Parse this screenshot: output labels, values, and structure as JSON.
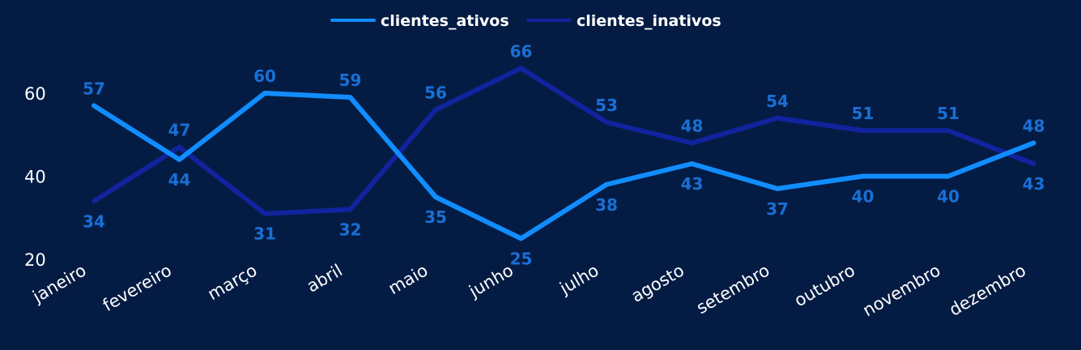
{
  "chart_data": {
    "type": "line",
    "categories": [
      "janeiro",
      "fevereiro",
      "março",
      "abril",
      "maio",
      "junho",
      "julho",
      "agosto",
      "setembro",
      "outubro",
      "novembro",
      "dezembro"
    ],
    "series": [
      {
        "name": "clientes_ativos",
        "color": "#118dff",
        "values": [
          57,
          44,
          60,
          59,
          35,
          25,
          38,
          43,
          37,
          40,
          40,
          48
        ]
      },
      {
        "name": "clientes_inativos",
        "color": "#12239e",
        "values": [
          34,
          47,
          31,
          32,
          56,
          66,
          53,
          48,
          54,
          51,
          51,
          43
        ]
      }
    ],
    "y_ticks": [
      20,
      40,
      60
    ],
    "ylim": [
      20,
      70
    ],
    "grid": false,
    "legend": "top-center",
    "data_label_color": "#1a6fd4"
  }
}
